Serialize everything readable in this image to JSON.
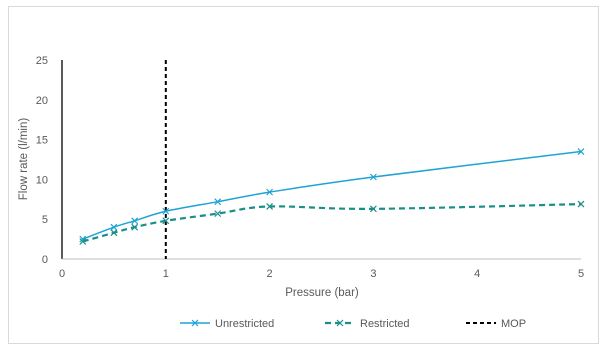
{
  "chart_data": {
    "type": "line",
    "xlabel": "Pressure (bar)",
    "ylabel": "Flow rate (l/min)",
    "xlim": [
      0,
      5
    ],
    "ylim": [
      0,
      25
    ],
    "x_ticks": [
      0,
      1,
      2,
      3,
      4,
      5
    ],
    "y_ticks": [
      0,
      5,
      10,
      15,
      20,
      25
    ],
    "grid": false,
    "legend_position": "bottom",
    "series": [
      {
        "name": "Unrestricted",
        "style": "solid",
        "marker": "x",
        "color": "#1fa3d6",
        "x": [
          0.2,
          0.5,
          0.7,
          1.0,
          1.5,
          2.0,
          3.0,
          5.0
        ],
        "y": [
          2.5,
          4.0,
          4.8,
          6.0,
          7.2,
          8.4,
          10.3,
          13.5
        ]
      },
      {
        "name": "Restricted",
        "style": "dashed",
        "marker": "x",
        "color": "#1a8f8a",
        "x": [
          0.2,
          0.5,
          0.7,
          1.0,
          1.5,
          2.0,
          3.0,
          5.0
        ],
        "y": [
          2.2,
          3.3,
          4.0,
          4.8,
          5.7,
          6.6,
          6.3,
          6.9
        ]
      }
    ],
    "reference_lines": [
      {
        "name": "MOP",
        "orientation": "vertical",
        "x": 1.0,
        "style": "dashed",
        "color": "#000000"
      }
    ]
  }
}
